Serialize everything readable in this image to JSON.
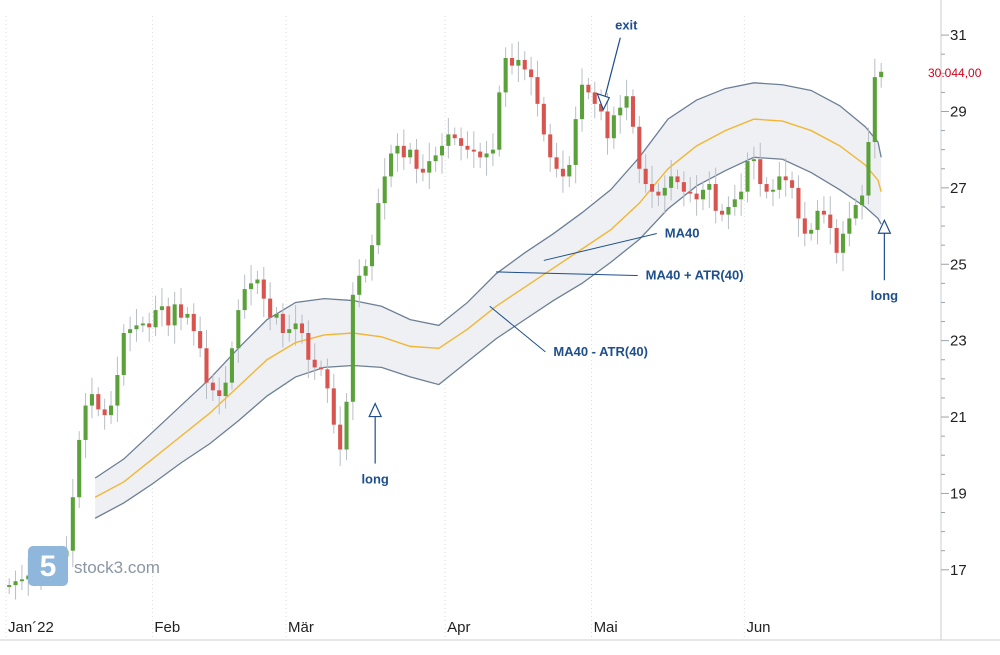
{
  "chart_data": {
    "type": "candlestick",
    "title": "",
    "xlabel": "",
    "ylabel": "",
    "ylim": [
      16,
      31.5
    ],
    "y_ticks": [
      17,
      19,
      21,
      23,
      25,
      27,
      29,
      31
    ],
    "x_range": [
      0,
      137
    ],
    "x_ticks": [
      {
        "label": "Jan´22",
        "x": 0
      },
      {
        "label": "Feb",
        "x": 23
      },
      {
        "label": "Mär",
        "x": 44
      },
      {
        "label": "Apr",
        "x": 69
      },
      {
        "label": "Mai",
        "x": 92
      },
      {
        "label": "Jun",
        "x": 116
      }
    ],
    "grid": "vertical-dotted",
    "last_price_label": "30.044,00",
    "last_price": 30.04,
    "colors": {
      "up": "#5aa13a",
      "down": "#d9534f",
      "ma": "#f2b632",
      "band_line": "#6d7f95",
      "band_fill": "#eef0f4",
      "annotation": "#1e4f8c",
      "price": "#d0021b"
    },
    "closes": [
      16.6,
      16.7,
      16.75,
      16.85,
      16.95,
      17.0,
      17.1,
      17.2,
      17.35,
      17.5,
      18.9,
      20.4,
      21.3,
      21.6,
      21.2,
      21.05,
      21.3,
      22.1,
      23.2,
      23.3,
      23.4,
      23.45,
      23.35,
      23.8,
      23.9,
      23.4,
      23.95,
      23.6,
      23.7,
      23.25,
      22.8,
      21.9,
      21.7,
      21.55,
      21.9,
      22.8,
      23.8,
      24.35,
      24.5,
      24.6,
      24.1,
      23.6,
      23.7,
      23.2,
      23.3,
      23.45,
      23.2,
      22.5,
      22.3,
      22.25,
      21.75,
      20.8,
      20.15,
      21.4,
      24.2,
      24.7,
      24.95,
      25.5,
      26.6,
      27.3,
      27.9,
      28.1,
      27.8,
      28.0,
      27.5,
      27.4,
      27.7,
      27.85,
      28.1,
      28.4,
      28.3,
      28.1,
      28.0,
      27.95,
      27.8,
      27.9,
      28.0,
      29.5,
      30.4,
      30.2,
      30.35,
      30.1,
      29.9,
      29.2,
      28.4,
      27.8,
      27.5,
      27.3,
      27.6,
      28.8,
      29.7,
      29.5,
      29.2,
      29.0,
      28.3,
      28.9,
      29.1,
      29.4,
      28.6,
      27.5,
      27.1,
      26.9,
      26.8,
      27.0,
      27.3,
      27.15,
      26.9,
      26.85,
      26.7,
      26.95,
      27.1,
      26.4,
      26.3,
      26.5,
      26.7,
      26.9,
      27.7,
      27.75,
      27.1,
      26.9,
      26.95,
      27.3,
      27.2,
      27.0,
      26.2,
      25.8,
      25.9,
      26.4,
      26.3,
      25.95,
      25.3,
      25.8,
      26.2,
      26.55,
      26.8,
      28.2,
      29.9,
      30.04
    ],
    "bands": [
      {
        "name": "MA40",
        "values": [
          [
            18.9,
            19.3,
            19.9,
            20.5,
            21.1,
            21.8,
            22.5,
            22.95,
            23.15,
            23.2,
            23.1,
            22.85,
            22.8,
            23.3,
            23.9,
            24.4,
            24.9,
            25.4,
            25.9,
            26.6,
            27.5,
            28.1,
            28.5,
            28.8,
            28.75,
            28.5,
            28.1,
            27.6,
            27.2,
            26.9
          ]
        ]
      },
      {
        "name": "MA40 + ATR(40)",
        "values": [
          19.4,
          19.9,
          20.6,
          21.3,
          22.0,
          22.8,
          23.55,
          24.0,
          24.1,
          24.05,
          23.9,
          23.55,
          23.4,
          24.0,
          24.75,
          25.3,
          25.8,
          26.35,
          26.95,
          27.8,
          28.8,
          29.3,
          29.6,
          29.75,
          29.7,
          29.55,
          29.15,
          28.6,
          28.2,
          27.8
        ]
      },
      {
        "name": "MA40 - ATR(40)",
        "values": [
          18.35,
          18.75,
          19.25,
          19.8,
          20.3,
          20.9,
          21.55,
          22.05,
          22.3,
          22.35,
          22.3,
          22.05,
          21.85,
          22.45,
          23.05,
          23.55,
          24.05,
          24.5,
          25.05,
          25.65,
          26.45,
          27.05,
          27.45,
          27.8,
          27.75,
          27.4,
          26.95,
          26.5,
          26.2,
          26.05
        ]
      }
    ],
    "band_x": [
      14,
      18.5,
      23,
      27.5,
      32,
      36.5,
      41,
      45.5,
      50,
      54.5,
      59,
      63.5,
      68,
      72.5,
      77,
      81.5,
      86,
      90.5,
      95,
      99.5,
      104,
      108.5,
      113,
      117.5,
      122,
      126.5,
      131,
      135,
      137,
      137.5
    ],
    "annotations": [
      {
        "label": "exit",
        "x": 94,
        "y": 29.1,
        "direction": "down"
      },
      {
        "label": "long",
        "x": 58,
        "y": 21.3,
        "direction": "up"
      },
      {
        "label": "long",
        "x": 138,
        "y": 26.1,
        "direction": "up"
      }
    ],
    "band_labels": [
      {
        "label": "MA40",
        "x": 103.5,
        "y": 25.7,
        "target_x": 84.5,
        "target_y": 25.1
      },
      {
        "label": "MA40 + ATR(40)",
        "x": 100.5,
        "y": 24.6,
        "target_x": 77,
        "target_y": 24.8
      },
      {
        "label": "MA40 - ATR(40)",
        "x": 86,
        "y": 22.6,
        "target_x": 76,
        "target_y": 23.9
      }
    ],
    "watermark": "stock3.com"
  }
}
